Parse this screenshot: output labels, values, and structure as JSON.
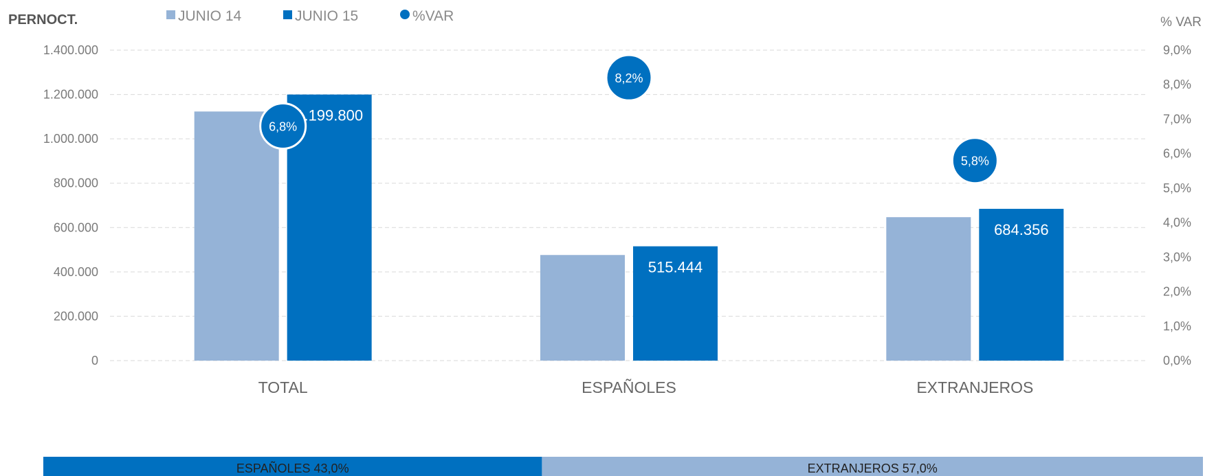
{
  "chart_data": {
    "type": "bar",
    "ylabel": "PERNOCT.",
    "y2label": "% VAR",
    "categories": [
      "TOTAL",
      "ESPAÑOLES",
      "EXTRANJEROS"
    ],
    "ylim": [
      0,
      1400000
    ],
    "y2lim": [
      0,
      9
    ],
    "yticks": [
      "0",
      "200.000",
      "400.000",
      "600.000",
      "800.000",
      "1.000.000",
      "1.200.000",
      "1.400.000"
    ],
    "y2ticks": [
      "0,0%",
      "1,0%",
      "2,0%",
      "3,0%",
      "4,0%",
      "5,0%",
      "6,0%",
      "7,0%",
      "8,0%",
      "9,0%"
    ],
    "series": [
      {
        "name": "JUNIO 14",
        "values": [
          1123300,
          476200,
          646800
        ],
        "color": "#95b3d7"
      },
      {
        "name": "JUNIO 15",
        "values": [
          1199800,
          515444,
          684356
        ],
        "color": "#0070c0",
        "labels": [
          "1.199.800",
          "515.444",
          "684.356"
        ]
      }
    ],
    "var_series": {
      "name": "%VAR",
      "values": [
        6.8,
        8.2,
        5.8
      ],
      "labels": [
        "6,8%",
        "8,2%",
        "5,8%"
      ],
      "color": "#0070c0"
    },
    "grid": true,
    "legend": "top"
  },
  "share_bar": [
    {
      "label": "ESPAÑOLES 43,0%",
      "value": 43.0,
      "color": "#0070c0"
    },
    {
      "label": "EXTRANJEROS 57,0%",
      "value": 57.0,
      "color": "#95b3d7"
    }
  ]
}
